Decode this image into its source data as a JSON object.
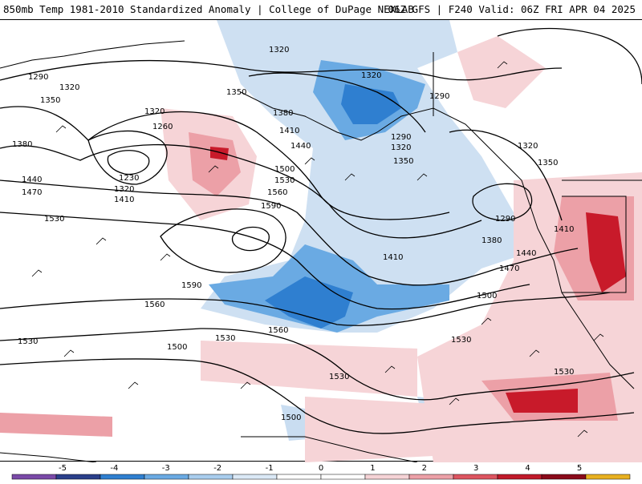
{
  "header": {
    "left": "850mb Temp 1981-2010 Standardized Anomaly | College of DuPage NEXLAB",
    "right": "06Z GFS | F240 Valid: 06Z FRI APR 04 2025"
  },
  "contour_labels": [
    "1320",
    "1290",
    "1320",
    "1350",
    "1290",
    "1350",
    "1320",
    "1380",
    "1260",
    "1320",
    "1380",
    "1410",
    "1440",
    "1290",
    "1320",
    "1350",
    "1230",
    "1320",
    "1410",
    "1440",
    "1470",
    "1500",
    "1530",
    "1560",
    "1590",
    "1380",
    "1410",
    "1530",
    "1590",
    "1410",
    "1440",
    "1470",
    "1500",
    "1560",
    "1560",
    "1530",
    "1500",
    "1530",
    "1530",
    "1530",
    "1530",
    "1500",
    "1290",
    "1320",
    "1350"
  ],
  "colorbar": {
    "ticks": [
      "-5",
      "-4",
      "-3",
      "-2",
      "-1",
      "0",
      "1",
      "2",
      "3",
      "4",
      "5"
    ],
    "colors": [
      "#7a4aa8",
      "#2a3f8a",
      "#2f7fd0",
      "#6aaae3",
      "#a9cdee",
      "#dbe9f6",
      "#ffffff",
      "#ffffff",
      "#f5d3d6",
      "#eca0a7",
      "#dd5560",
      "#c01a2a",
      "#8a0a1a",
      "#e8b020"
    ]
  },
  "colors": {
    "cold_strong": "#2f7fd0",
    "cold_mid": "#6aaae3",
    "cold_light": "#c9ddf1",
    "warm_light": "#f6d4d7",
    "warm_mid": "#eca0a7",
    "warm_strong": "#c81a2a"
  }
}
